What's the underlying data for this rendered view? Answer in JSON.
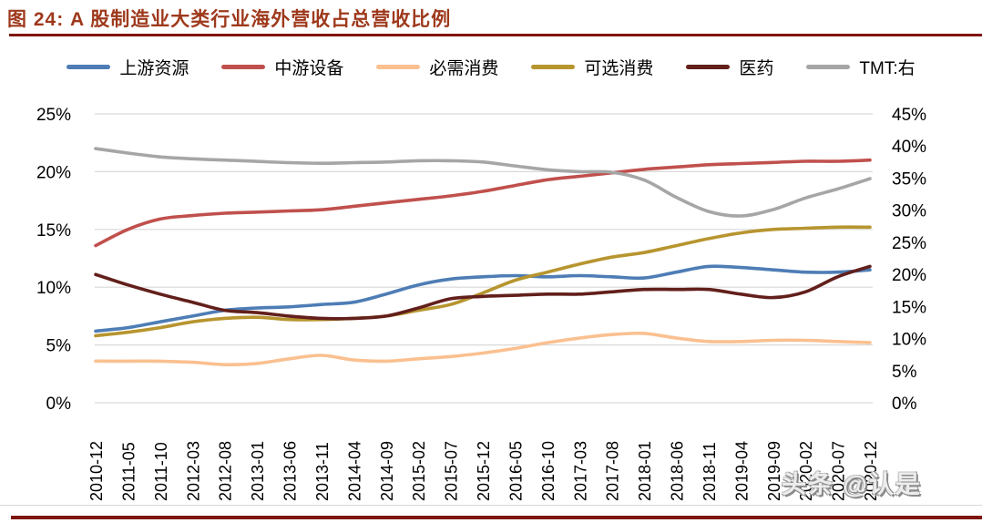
{
  "header": {
    "title": "图 24:  A 股制造业大类行业海外营收占总营收比例"
  },
  "watermark": "头条 @认是",
  "colors": {
    "title": "#9E391C",
    "rule": "#7E150F",
    "gridline": "#D9D9D9",
    "upstream_blue": "#4E7DB5",
    "midstream_red": "#C0504D",
    "staple_peach": "#FAC090",
    "discretionary_olive": "#B7952F",
    "pharma_maroon": "#621F1B",
    "tmt_gray": "#A6A6A6"
  },
  "chart_data": {
    "type": "line",
    "title": "A 股制造业大类行业海外营收占总营收比例",
    "grid": true,
    "legend_position": "top",
    "smoothed_lines": true,
    "x_categories": [
      "2010-12",
      "2011-05",
      "2011-10",
      "2012-03",
      "2012-08",
      "2013-01",
      "2013-06",
      "2013-11",
      "2014-04",
      "2014-09",
      "2015-02",
      "2015-07",
      "2015-12",
      "2016-05",
      "2016-10",
      "2017-03",
      "2017-08",
      "2018-01",
      "2018-06",
      "2018-11",
      "2019-04",
      "2019-09",
      "2020-02",
      "2020-07",
      "2020-12"
    ],
    "left_axis": {
      "min": 0,
      "max": 25,
      "unit": "%",
      "ticks": [
        "25%",
        "20%",
        "15%",
        "10%",
        "5%",
        "0%"
      ]
    },
    "right_axis": {
      "min": 0,
      "max": 45,
      "unit": "%",
      "ticks": [
        "45%",
        "40%",
        "35%",
        "30%",
        "25%",
        "20%",
        "15%",
        "10%",
        "5%",
        "0%"
      ]
    },
    "series": [
      {
        "name": "上游资源",
        "color": "#4E7DB5",
        "axis": "left",
        "values": [
          6.2,
          6.5,
          7.0,
          7.5,
          8.0,
          8.2,
          8.3,
          8.5,
          8.7,
          9.4,
          10.2,
          10.7,
          10.9,
          11.0,
          10.9,
          11.0,
          10.9,
          10.8,
          11.3,
          11.8,
          11.7,
          11.5,
          11.3,
          11.3,
          11.5
        ]
      },
      {
        "name": "中游设备",
        "color": "#C0504D",
        "axis": "left",
        "values": [
          13.6,
          15.0,
          15.9,
          16.2,
          16.4,
          16.5,
          16.6,
          16.7,
          17.0,
          17.3,
          17.6,
          17.9,
          18.3,
          18.8,
          19.3,
          19.6,
          19.9,
          20.2,
          20.4,
          20.6,
          20.7,
          20.8,
          20.9,
          20.9,
          21.0
        ]
      },
      {
        "name": "必需消费",
        "color": "#FAC090",
        "axis": "left",
        "values": [
          3.6,
          3.6,
          3.6,
          3.5,
          3.3,
          3.4,
          3.8,
          4.1,
          3.7,
          3.6,
          3.8,
          4.0,
          4.3,
          4.7,
          5.2,
          5.6,
          5.9,
          6.0,
          5.6,
          5.3,
          5.3,
          5.4,
          5.4,
          5.3,
          5.2
        ]
      },
      {
        "name": "可选消费",
        "color": "#B7952F",
        "axis": "left",
        "values": [
          5.8,
          6.1,
          6.5,
          7.0,
          7.3,
          7.4,
          7.2,
          7.2,
          7.3,
          7.5,
          8.0,
          8.5,
          9.5,
          10.6,
          11.3,
          12.0,
          12.6,
          13.0,
          13.6,
          14.2,
          14.7,
          15.0,
          15.1,
          15.2,
          15.2
        ]
      },
      {
        "name": "医药",
        "color": "#621F1B",
        "axis": "left",
        "values": [
          11.1,
          10.2,
          9.4,
          8.7,
          8.0,
          7.8,
          7.5,
          7.3,
          7.3,
          7.5,
          8.2,
          9.0,
          9.2,
          9.3,
          9.4,
          9.4,
          9.6,
          9.8,
          9.8,
          9.8,
          9.4,
          9.1,
          9.6,
          10.9,
          11.8
        ]
      },
      {
        "name": "TMT:右",
        "color": "#A6A6A6",
        "axis": "right",
        "values": [
          39.6,
          38.9,
          38.3,
          38.0,
          37.8,
          37.6,
          37.4,
          37.3,
          37.4,
          37.5,
          37.7,
          37.7,
          37.5,
          36.9,
          36.3,
          36.0,
          35.9,
          34.7,
          32.0,
          29.8,
          29.1,
          30.1,
          31.9,
          33.3,
          34.9
        ]
      }
    ]
  }
}
